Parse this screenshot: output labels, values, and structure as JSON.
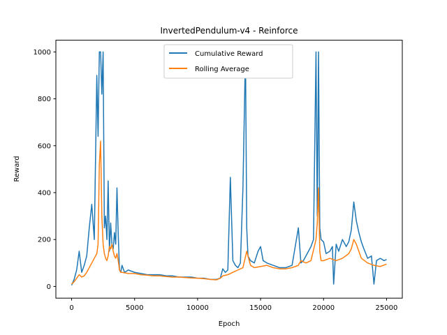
{
  "chart_data": {
    "type": "line",
    "title": "InvertedPendulum-v4 - Reinforce",
    "xlabel": "Epoch",
    "ylabel": "Reward",
    "xlim": [
      -1250,
      26250
    ],
    "ylim": [
      -50,
      1050
    ],
    "xticks": [
      0,
      5000,
      10000,
      15000,
      20000,
      25000
    ],
    "yticks": [
      0,
      200,
      400,
      600,
      800,
      1000
    ],
    "grid": false,
    "legend_position": "top-center",
    "series": [
      {
        "name": "Cumulative Reward",
        "color": "#1f77b4",
        "x": [
          0,
          200,
          400,
          600,
          800,
          1000,
          1200,
          1400,
          1600,
          1800,
          2000,
          2100,
          2200,
          2300,
          2400,
          2500,
          2600,
          2700,
          2800,
          2900,
          3000,
          3100,
          3200,
          3300,
          3400,
          3500,
          3600,
          3700,
          3800,
          3900,
          4000,
          4200,
          4500,
          5000,
          5500,
          6000,
          6500,
          7000,
          7500,
          8000,
          8500,
          9000,
          9500,
          10000,
          10500,
          11000,
          11500,
          11800,
          12000,
          12200,
          12400,
          12600,
          12800,
          13000,
          13200,
          13400,
          13600,
          13800,
          13900,
          14000,
          14200,
          14500,
          14800,
          15000,
          15200,
          15500,
          16000,
          16500,
          17000,
          17500,
          18000,
          18200,
          18400,
          18600,
          18800,
          19000,
          19200,
          19400,
          19500,
          19600,
          19700,
          19800,
          20000,
          20200,
          20500,
          20700,
          20800,
          21000,
          21200,
          21500,
          21800,
          22000,
          22200,
          22400,
          22600,
          22800,
          23000,
          23200,
          23500,
          23800,
          24000,
          24200,
          24500,
          24800,
          25000
        ],
        "y": [
          5,
          30,
          70,
          150,
          60,
          90,
          130,
          250,
          350,
          200,
          900,
          640,
          1000,
          1000,
          820,
          1000,
          250,
          300,
          200,
          450,
          150,
          270,
          180,
          160,
          230,
          180,
          420,
          220,
          70,
          60,
          90,
          60,
          70,
          60,
          55,
          50,
          50,
          50,
          45,
          45,
          40,
          40,
          40,
          35,
          35,
          30,
          30,
          35,
          75,
          60,
          70,
          465,
          110,
          90,
          80,
          100,
          420,
          1000,
          250,
          130,
          110,
          100,
          150,
          170,
          110,
          100,
          90,
          80,
          80,
          90,
          250,
          100,
          110,
          130,
          150,
          170,
          200,
          1000,
          300,
          1000,
          250,
          200,
          190,
          140,
          150,
          170,
          10,
          180,
          150,
          200,
          170,
          190,
          240,
          360,
          280,
          230,
          190,
          160,
          120,
          130,
          10,
          110,
          120,
          110,
          115
        ]
      },
      {
        "name": "Rolling Average",
        "color": "#ff7f0e",
        "x": [
          0,
          200,
          400,
          600,
          800,
          1000,
          1200,
          1400,
          1600,
          1800,
          2000,
          2100,
          2200,
          2300,
          2400,
          2500,
          2600,
          2700,
          2800,
          2900,
          3000,
          3100,
          3200,
          3300,
          3400,
          3500,
          3600,
          3700,
          3800,
          3900,
          4000,
          4500,
          5000,
          5500,
          6000,
          6500,
          7000,
          7500,
          8000,
          8500,
          9000,
          9500,
          10000,
          10500,
          11000,
          11500,
          11800,
          12000,
          12400,
          12800,
          13200,
          13600,
          13900,
          14200,
          14500,
          15000,
          15500,
          16000,
          16500,
          17000,
          17500,
          18000,
          18200,
          18600,
          19000,
          19400,
          19500,
          19600,
          19700,
          19800,
          20000,
          20500,
          21000,
          21500,
          22000,
          22200,
          22400,
          22600,
          22800,
          23000,
          23500,
          24000,
          24500,
          25000
        ],
        "y": [
          10,
          20,
          35,
          50,
          40,
          45,
          60,
          80,
          100,
          120,
          140,
          180,
          520,
          620,
          300,
          180,
          140,
          120,
          110,
          130,
          170,
          160,
          180,
          150,
          130,
          120,
          140,
          110,
          70,
          60,
          60,
          55,
          55,
          50,
          48,
          45,
          45,
          42,
          40,
          40,
          38,
          36,
          35,
          33,
          30,
          28,
          35,
          45,
          50,
          60,
          70,
          80,
          150,
          90,
          80,
          85,
          90,
          80,
          75,
          75,
          80,
          90,
          110,
          100,
          110,
          200,
          270,
          420,
          150,
          110,
          110,
          120,
          110,
          120,
          140,
          160,
          200,
          180,
          150,
          120,
          100,
          90,
          85,
          95
        ]
      }
    ]
  }
}
